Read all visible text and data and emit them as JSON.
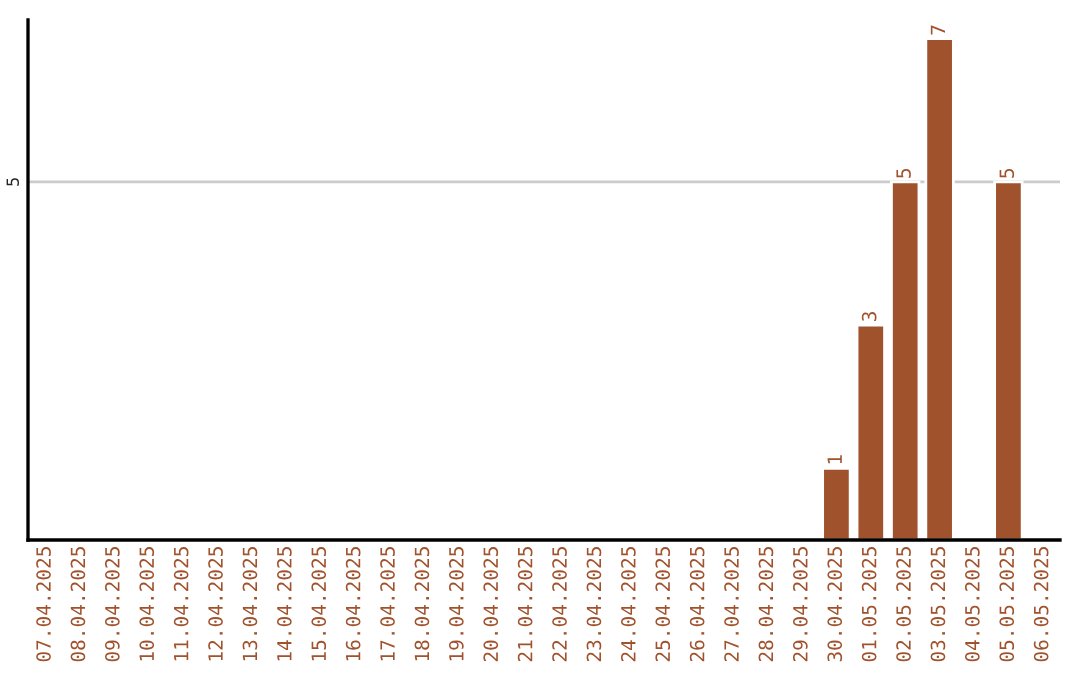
{
  "chart_data": {
    "type": "bar",
    "categories": [
      "07.04.2025",
      "08.04.2025",
      "09.04.2025",
      "10.04.2025",
      "11.04.2025",
      "12.04.2025",
      "13.04.2025",
      "14.04.2025",
      "15.04.2025",
      "16.04.2025",
      "17.04.2025",
      "18.04.2025",
      "19.04.2025",
      "20.04.2025",
      "21.04.2025",
      "22.04.2025",
      "23.04.2025",
      "24.04.2025",
      "25.04.2025",
      "26.04.2025",
      "27.04.2025",
      "28.04.2025",
      "29.04.2025",
      "30.04.2025",
      "01.05.2025",
      "02.05.2025",
      "03.05.2025",
      "04.05.2025",
      "05.05.2025",
      "06.05.2025"
    ],
    "values": [
      null,
      null,
      null,
      null,
      null,
      null,
      null,
      null,
      null,
      null,
      null,
      null,
      null,
      null,
      null,
      null,
      null,
      null,
      null,
      null,
      null,
      null,
      null,
      1,
      3,
      5,
      7,
      null,
      5,
      null
    ],
    "data_labels": true,
    "color": "#a0522d",
    "ylim": [
      0,
      7.26
    ],
    "yticks": [
      5
    ],
    "grid": "y"
  }
}
